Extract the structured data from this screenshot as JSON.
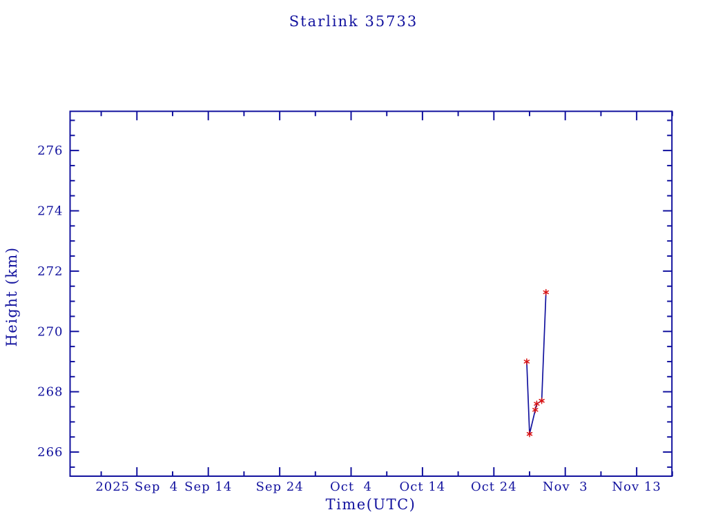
{
  "chart_data": {
    "type": "line",
    "title": "Starlink 35733",
    "xlabel": "Time(UTC)",
    "ylabel": "Height (km)",
    "grid": false,
    "legend_position": "none",
    "colors": {
      "axis_and_text": "#12129e",
      "line": "#12129e",
      "marker": "#d91111",
      "background": "#ffffff"
    },
    "x_axis": {
      "unit": "days relative to 2025 Sep 4 00:00 UTC",
      "range": [
        -9.36,
        74.94
      ],
      "major_ticks": [
        {
          "day": 0,
          "label": "2025 Sep  4"
        },
        {
          "day": 10,
          "label": "Sep 14"
        },
        {
          "day": 20,
          "label": "Sep 24"
        },
        {
          "day": 30,
          "label": "Oct  4"
        },
        {
          "day": 40,
          "label": "Oct 14"
        },
        {
          "day": 50,
          "label": "Oct 24"
        },
        {
          "day": 60,
          "label": "Nov  3"
        },
        {
          "day": 70,
          "label": "Nov 13"
        }
      ],
      "minor_tick_days": [
        -5,
        5,
        15,
        25,
        35,
        45,
        55,
        65,
        75
      ]
    },
    "y_axis": {
      "unit": "km",
      "range": [
        265.2,
        277.3
      ],
      "major_ticks": [
        266,
        268,
        270,
        272,
        274,
        276
      ],
      "minor_tick_step": 0.5
    },
    "series": [
      {
        "name": "Height (km)",
        "marker": "asterisk",
        "points": [
          {
            "date": "2025 Oct 28.6",
            "day": 54.6,
            "height_km": 269.0
          },
          {
            "date": "2025 Oct 29.0",
            "day": 55.0,
            "height_km": 266.6
          },
          {
            "date": "2025 Oct 29.8",
            "day": 55.8,
            "height_km": 267.4
          },
          {
            "date": "2025 Oct 30.0",
            "day": 56.0,
            "height_km": 267.6
          },
          {
            "date": "2025 Oct 30.7",
            "day": 56.7,
            "height_km": 267.7
          },
          {
            "date": "2025 Oct 31.3",
            "day": 57.3,
            "height_km": 271.3
          }
        ]
      }
    ]
  }
}
